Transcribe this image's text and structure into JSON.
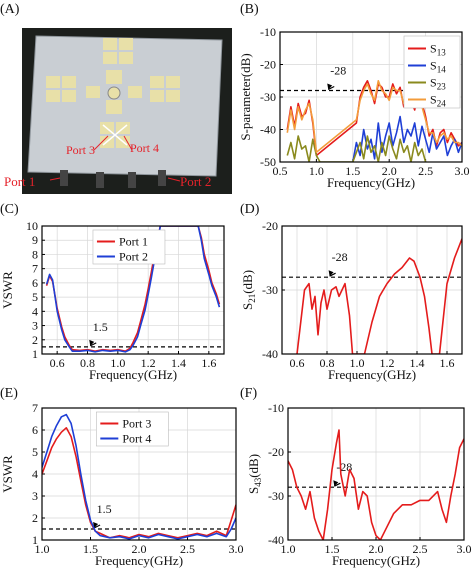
{
  "panel_labels": [
    "(A)",
    "(B)",
    "(C)",
    "(D)",
    "(E)",
    "(F)"
  ],
  "photo": {
    "port_labels": [
      "Port 3",
      "Port 4",
      "Port 1",
      "Port 2"
    ],
    "colors": {
      "board": "#c9ced3",
      "pad": "#e8e0a8",
      "label": "#e5232b",
      "background": "#1c1f1c"
    }
  },
  "colors": {
    "red": "#e41c1c",
    "blue": "#1f3fd6",
    "olive": "#8a8a1e",
    "orange": "#f39c3b",
    "dashed": "#000000",
    "grid": "#d7d7d7"
  },
  "chart_data": [
    {
      "id": "B",
      "type": "line",
      "xlabel": "Frequency(GHz)",
      "ylabel": "S-parameter(dB)",
      "xlim": [
        0.5,
        3.0
      ],
      "ylim": [
        -50,
        -10
      ],
      "xticks": [
        "0.5",
        "1.0",
        "1.5",
        "2.0",
        "2.5",
        "3.0"
      ],
      "yticks": [
        "-50",
        "-40",
        "-30",
        "-20",
        "-10"
      ],
      "grid": true,
      "legend_position": "top-right",
      "reference_line": {
        "y": -28,
        "label": "-28"
      },
      "series": [
        {
          "name": "S13",
          "color": "red",
          "x": [
            0.6,
            0.65,
            0.7,
            0.75,
            0.8,
            0.85,
            0.9,
            0.95,
            1.0,
            1.55,
            1.6,
            1.65,
            1.7,
            1.75,
            1.8,
            1.85,
            1.9,
            1.95,
            2.0,
            2.05,
            2.1,
            2.15,
            2.2,
            2.25,
            2.3,
            2.35,
            2.4,
            2.45,
            2.5,
            2.55,
            2.6,
            2.65,
            2.7,
            2.75,
            2.8,
            2.85,
            2.9,
            2.95,
            3.0
          ],
          "y": [
            -40,
            -33,
            -39,
            -32,
            -36,
            -35,
            -31,
            -38,
            -48,
            -38,
            -30,
            -27,
            -25,
            -28,
            -32,
            -26,
            -27,
            -30,
            -30,
            -26,
            -29,
            -27,
            -33,
            -28,
            -31,
            -34,
            -28,
            -32,
            -36,
            -42,
            -40,
            -45,
            -41,
            -40,
            -44,
            -41,
            -43,
            -45,
            -44
          ]
        },
        {
          "name": "S14",
          "color": "blue",
          "x": [
            1.5,
            1.55,
            1.6,
            1.65,
            1.7,
            1.75,
            1.8,
            1.85,
            1.9,
            1.95,
            2.0,
            2.05,
            2.1,
            2.15,
            2.2,
            2.25,
            2.3,
            2.35,
            2.4,
            2.45,
            2.5,
            2.55,
            2.6,
            2.65,
            2.7,
            2.75,
            2.8,
            2.85,
            2.9,
            2.95,
            3.0
          ],
          "y": [
            -50,
            -44,
            -48,
            -40,
            -46,
            -43,
            -49,
            -38,
            -47,
            -42,
            -38,
            -45,
            -41,
            -36,
            -44,
            -40,
            -42,
            -38,
            -45,
            -39,
            -43,
            -47,
            -41,
            -46,
            -44,
            -42,
            -48,
            -45,
            -43,
            -47,
            -44
          ]
        },
        {
          "name": "S23",
          "color": "olive",
          "x": [
            0.6,
            0.65,
            0.7,
            0.75,
            0.8,
            0.85,
            0.9,
            0.95,
            1.0,
            1.05,
            1.5,
            1.55,
            1.6,
            1.65,
            1.7,
            1.75,
            1.8,
            1.85,
            1.9,
            1.95,
            2.0,
            2.05,
            2.1,
            2.15,
            2.2,
            2.25,
            2.3,
            2.35,
            2.4,
            2.45,
            2.5
          ],
          "y": [
            -48,
            -44,
            -49,
            -42,
            -46,
            -45,
            -50,
            -43,
            -48,
            -50,
            -50,
            -47,
            -44,
            -49,
            -42,
            -47,
            -45,
            -50,
            -44,
            -48,
            -42,
            -46,
            -49,
            -43,
            -47,
            -45,
            -50,
            -44,
            -48,
            -46,
            -50
          ]
        },
        {
          "name": "S24",
          "color": "orange",
          "x": [
            0.6,
            0.65,
            0.7,
            0.75,
            0.8,
            0.85,
            0.9,
            0.95,
            1.0,
            1.55,
            1.6,
            1.65,
            1.7,
            1.75,
            1.8,
            1.85,
            1.9,
            1.95,
            2.0,
            2.05,
            2.1,
            2.15,
            2.2,
            2.25,
            2.3,
            2.35,
            2.4,
            2.45,
            2.5,
            2.55,
            2.6,
            2.65,
            2.7,
            2.75,
            2.8,
            2.85,
            2.9,
            2.95,
            3.0
          ],
          "y": [
            -41,
            -34,
            -40,
            -33,
            -37,
            -34,
            -32,
            -37,
            -47,
            -37,
            -31,
            -28,
            -26,
            -29,
            -31,
            -25,
            -28,
            -29,
            -31,
            -27,
            -28,
            -28,
            -32,
            -29,
            -30,
            -33,
            -29,
            -33,
            -37,
            -41,
            -41,
            -44,
            -42,
            -41,
            -43,
            -42,
            -44,
            -44,
            -45
          ]
        }
      ]
    },
    {
      "id": "C",
      "type": "line",
      "xlabel": "Frequency(GHz)",
      "ylabel": "VSWR",
      "xlim": [
        0.5,
        1.7
      ],
      "ylim": [
        1,
        10
      ],
      "xticks": [
        "0.6",
        "0.8",
        "1.0",
        "1.2",
        "1.4",
        "1.6"
      ],
      "yticks": [
        "1",
        "2",
        "3",
        "4",
        "5",
        "6",
        "7",
        "8",
        "9",
        "10"
      ],
      "grid": true,
      "legend_position": "top-center",
      "reference_line": {
        "y": 1.5,
        "label": "1.5"
      },
      "series": [
        {
          "name": "Port 1",
          "color": "red",
          "x": [
            0.53,
            0.55,
            0.57,
            0.6,
            0.63,
            0.65,
            0.68,
            0.7,
            0.75,
            0.8,
            0.85,
            0.9,
            0.95,
            1.0,
            1.05,
            1.08,
            1.1,
            1.13,
            1.15,
            1.18,
            1.2,
            1.22,
            1.24,
            1.26,
            1.28,
            1.3,
            1.5,
            1.53,
            1.55,
            1.57,
            1.6,
            1.62,
            1.65,
            1.67
          ],
          "y": [
            5.8,
            6.5,
            6.1,
            4.2,
            2.9,
            2.2,
            1.6,
            1.3,
            1.25,
            1.3,
            1.2,
            1.3,
            1.25,
            1.3,
            1.2,
            1.4,
            1.8,
            2.5,
            3.3,
            4.5,
            5.6,
            6.7,
            7.9,
            9.0,
            10,
            10,
            10,
            10,
            9.2,
            8.0,
            6.9,
            6.0,
            5.2,
            4.5
          ]
        },
        {
          "name": "Port 2",
          "color": "blue",
          "x": [
            0.53,
            0.55,
            0.57,
            0.6,
            0.63,
            0.65,
            0.68,
            0.7,
            0.75,
            0.8,
            0.85,
            0.9,
            0.95,
            1.0,
            1.05,
            1.08,
            1.1,
            1.13,
            1.15,
            1.18,
            1.2,
            1.22,
            1.24,
            1.26,
            1.28,
            1.3,
            1.5,
            1.53,
            1.55,
            1.57,
            1.6,
            1.62,
            1.65,
            1.67
          ],
          "y": [
            5.9,
            6.6,
            6.2,
            4.0,
            2.7,
            2.0,
            1.5,
            1.2,
            1.2,
            1.25,
            1.15,
            1.25,
            1.2,
            1.25,
            1.15,
            1.3,
            1.6,
            2.2,
            3.0,
            4.1,
            5.2,
            6.3,
            7.5,
            8.7,
            10,
            10,
            10,
            10,
            9.0,
            7.7,
            6.6,
            5.8,
            5.0,
            4.3
          ]
        }
      ]
    },
    {
      "id": "D",
      "type": "line",
      "xlabel": "Frequency(GHz)",
      "ylabel": "S21(dB)",
      "xlim": [
        0.5,
        1.7
      ],
      "ylim": [
        -40,
        -20
      ],
      "xticks": [
        "0.6",
        "0.8",
        "1.0",
        "1.2",
        "1.4",
        "1.6"
      ],
      "yticks": [
        "-40",
        "-30",
        "-20"
      ],
      "grid": true,
      "reference_line": {
        "y": -28,
        "label": "-28"
      },
      "series": [
        {
          "name": "",
          "color": "red",
          "x": [
            0.6,
            0.63,
            0.65,
            0.68,
            0.7,
            0.72,
            0.74,
            0.76,
            0.78,
            0.8,
            0.83,
            0.86,
            0.88,
            0.9,
            0.92,
            0.95,
            0.97,
            1.05,
            1.1,
            1.15,
            1.2,
            1.25,
            1.3,
            1.35,
            1.38,
            1.42,
            1.45,
            1.48,
            1.5,
            1.55,
            1.6,
            1.65,
            1.7
          ],
          "y": [
            -40,
            -34,
            -30,
            -29,
            -33,
            -31,
            -37,
            -32,
            -30,
            -33,
            -30,
            -29.5,
            -31,
            -30,
            -29,
            -34,
            -40,
            -40,
            -35,
            -31,
            -29,
            -27.5,
            -26.5,
            -25,
            -25.5,
            -28,
            -31,
            -36,
            -40,
            -40,
            -29,
            -25,
            -22
          ]
        }
      ]
    },
    {
      "id": "E",
      "type": "line",
      "xlabel": "Frequency(GHz)",
      "ylabel": "VSWR",
      "xlim": [
        1.0,
        3.0
      ],
      "ylim": [
        1,
        7
      ],
      "xticks": [
        "1.0",
        "1.5",
        "2.0",
        "2.5",
        "3.0"
      ],
      "yticks": [
        "1",
        "2",
        "3",
        "4",
        "5",
        "6",
        "7"
      ],
      "grid": true,
      "legend_position": "top-center",
      "reference_line": {
        "y": 1.5,
        "label": "1.5"
      },
      "series": [
        {
          "name": "Port 3",
          "color": "red",
          "x": [
            1.0,
            1.05,
            1.1,
            1.15,
            1.2,
            1.25,
            1.3,
            1.35,
            1.4,
            1.45,
            1.5,
            1.55,
            1.6,
            1.65,
            1.7,
            1.8,
            1.9,
            2.0,
            2.1,
            2.2,
            2.3,
            2.4,
            2.5,
            2.6,
            2.7,
            2.8,
            2.9,
            2.95,
            3.0
          ],
          "y": [
            4.0,
            4.6,
            5.2,
            5.6,
            5.9,
            6.1,
            5.7,
            4.8,
            3.7,
            2.6,
            1.8,
            1.4,
            1.3,
            1.2,
            1.1,
            1.2,
            1.1,
            1.25,
            1.15,
            1.3,
            1.2,
            1.1,
            1.2,
            1.3,
            1.2,
            1.4,
            1.2,
            1.9,
            2.6
          ]
        },
        {
          "name": "Port 4",
          "color": "blue",
          "x": [
            1.0,
            1.05,
            1.1,
            1.15,
            1.2,
            1.25,
            1.3,
            1.35,
            1.4,
            1.45,
            1.5,
            1.55,
            1.6,
            1.65,
            1.7,
            1.8,
            1.9,
            2.0,
            2.1,
            2.2,
            2.3,
            2.4,
            2.5,
            2.6,
            2.7,
            2.8,
            2.9,
            2.95,
            3.0
          ],
          "y": [
            4.3,
            5.0,
            5.7,
            6.2,
            6.6,
            6.7,
            6.3,
            5.3,
            4.0,
            2.8,
            1.9,
            1.4,
            1.2,
            1.15,
            1.1,
            1.15,
            1.05,
            1.2,
            1.1,
            1.25,
            1.15,
            1.05,
            1.15,
            1.25,
            1.15,
            1.3,
            1.15,
            1.5,
            2.0
          ]
        }
      ]
    },
    {
      "id": "F",
      "type": "line",
      "xlabel": "Frequency(GHz)",
      "ylabel": "S43(dB)",
      "xlim": [
        1.0,
        3.0
      ],
      "ylim": [
        -40,
        -10
      ],
      "xticks": [
        "1.0",
        "1.5",
        "2.0",
        "2.5",
        "3.0"
      ],
      "yticks": [
        "-40",
        "-30",
        "-20",
        "-10"
      ],
      "grid": true,
      "reference_line": {
        "y": -28,
        "label": "-28"
      },
      "series": [
        {
          "name": "",
          "color": "red",
          "x": [
            1.0,
            1.05,
            1.1,
            1.15,
            1.2,
            1.25,
            1.3,
            1.35,
            1.4,
            1.45,
            1.5,
            1.55,
            1.58,
            1.6,
            1.65,
            1.7,
            1.75,
            1.8,
            1.85,
            1.9,
            1.95,
            2.0,
            2.05,
            2.1,
            2.2,
            2.3,
            2.4,
            2.5,
            2.6,
            2.7,
            2.75,
            2.8,
            2.85,
            2.9,
            2.95,
            3.0
          ],
          "y": [
            -22,
            -24,
            -28,
            -30,
            -33,
            -29,
            -35,
            -38,
            -41,
            -33,
            -24,
            -18,
            -15,
            -25,
            -30,
            -24,
            -26,
            -33,
            -29,
            -30,
            -36,
            -39,
            -40,
            -38,
            -34,
            -32,
            -32,
            -31,
            -31,
            -29,
            -33,
            -36,
            -30,
            -25,
            -19,
            -17
          ]
        }
      ]
    }
  ]
}
